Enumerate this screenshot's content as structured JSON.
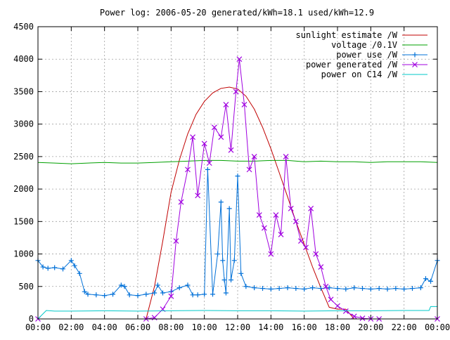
{
  "chart_data": {
    "type": "line",
    "title": "Power log: 2006-05-20 generated/kWh=18.1 used/kWh=12.9",
    "xlabel": "",
    "ylabel": "",
    "grid": true,
    "legend_position": "top-right",
    "xlim": [
      0,
      24
    ],
    "ylim": [
      0,
      4500
    ],
    "x_ticks": [
      {
        "value": 0,
        "label": "00:00"
      },
      {
        "value": 2,
        "label": "02:00"
      },
      {
        "value": 4,
        "label": "04:00"
      },
      {
        "value": 6,
        "label": "06:00"
      },
      {
        "value": 8,
        "label": "08:00"
      },
      {
        "value": 10,
        "label": "10:00"
      },
      {
        "value": 12,
        "label": "12:00"
      },
      {
        "value": 14,
        "label": "14:00"
      },
      {
        "value": 16,
        "label": "16:00"
      },
      {
        "value": 18,
        "label": "18:00"
      },
      {
        "value": 20,
        "label": "20:00"
      },
      {
        "value": 22,
        "label": "22:00"
      },
      {
        "value": 24,
        "label": "00:00"
      }
    ],
    "y_ticks": [
      0,
      500,
      1000,
      1500,
      2000,
      2500,
      3000,
      3500,
      4000,
      4500
    ],
    "series": [
      {
        "name": "sunlight estimate /W",
        "color": "#c00000",
        "marker": "none",
        "x": [
          0,
          6.5,
          7,
          7.5,
          8,
          8.5,
          9,
          9.5,
          10,
          10.5,
          11,
          11.5,
          12,
          12.5,
          13,
          13.5,
          14,
          14.5,
          15,
          15.5,
          16,
          16.5,
          17,
          17.5,
          18,
          18.5,
          19,
          24
        ],
        "y": [
          0,
          0,
          500,
          1200,
          1950,
          2450,
          2850,
          3150,
          3350,
          3480,
          3550,
          3570,
          3540,
          3430,
          3230,
          2950,
          2620,
          2250,
          1880,
          1500,
          1150,
          800,
          480,
          180,
          150,
          150,
          0,
          0
        ]
      },
      {
        "name": "voltage /0.1V",
        "color": "#00a000",
        "marker": "none",
        "x": [
          0,
          1,
          2,
          3,
          4,
          5,
          6,
          7,
          8,
          9,
          10,
          11,
          12,
          13,
          14,
          15,
          16,
          17,
          18,
          19,
          20,
          21,
          22,
          23,
          24
        ],
        "y": [
          2410,
          2400,
          2390,
          2400,
          2410,
          2400,
          2400,
          2410,
          2420,
          2430,
          2440,
          2440,
          2430,
          2430,
          2440,
          2440,
          2420,
          2430,
          2420,
          2420,
          2410,
          2420,
          2420,
          2420,
          2410
        ]
      },
      {
        "name": "power use /W",
        "color": "#0070d8",
        "marker": "plus",
        "x": [
          0,
          0.3,
          0.6,
          1,
          1.5,
          2,
          2.2,
          2.5,
          2.8,
          3,
          3.5,
          4,
          4.5,
          5,
          5.2,
          5.5,
          6,
          6.5,
          7,
          7.2,
          7.5,
          8,
          8.5,
          9,
          9.3,
          9.6,
          10,
          10.2,
          10.5,
          10.8,
          11,
          11.1,
          11.2,
          11.3,
          11.5,
          11.6,
          11.8,
          12,
          12.2,
          12.5,
          13,
          13.5,
          14,
          14.5,
          15,
          15.5,
          16,
          16.5,
          17,
          17.5,
          18,
          18.5,
          19,
          19.5,
          20,
          20.5,
          21,
          21.5,
          22,
          22.5,
          23,
          23.3,
          23.6,
          24
        ],
        "y": [
          900,
          800,
          780,
          790,
          770,
          900,
          820,
          700,
          420,
          380,
          370,
          360,
          380,
          520,
          500,
          370,
          360,
          380,
          400,
          520,
          400,
          420,
          480,
          520,
          370,
          370,
          380,
          2300,
          380,
          1000,
          1800,
          900,
          600,
          400,
          1700,
          600,
          900,
          2200,
          700,
          500,
          480,
          470,
          460,
          470,
          480,
          470,
          460,
          480,
          470,
          480,
          470,
          460,
          480,
          470,
          460,
          470,
          460,
          470,
          460,
          470,
          480,
          620,
          580,
          900
        ]
      },
      {
        "name": "power generated /W",
        "color": "#a000e0",
        "marker": "cross",
        "x": [
          0,
          6.5,
          7,
          7.5,
          8,
          8.3,
          8.6,
          9,
          9.3,
          9.6,
          10,
          10.3,
          10.6,
          11,
          11.3,
          11.6,
          11.9,
          12.1,
          12.4,
          12.7,
          13,
          13.3,
          13.6,
          14,
          14.3,
          14.6,
          14.9,
          15.2,
          15.5,
          15.8,
          16.1,
          16.4,
          16.7,
          17,
          17.3,
          17.6,
          18,
          18.5,
          19,
          19.5,
          20,
          20.5,
          24
        ],
        "y": [
          0,
          0,
          20,
          150,
          350,
          1200,
          1800,
          2300,
          2800,
          1900,
          2700,
          2400,
          2950,
          2800,
          3300,
          2600,
          3500,
          4000,
          3300,
          2300,
          2500,
          1600,
          1400,
          1000,
          1600,
          1300,
          2500,
          1700,
          1500,
          1200,
          1100,
          1700,
          1000,
          800,
          500,
          300,
          200,
          120,
          40,
          10,
          0,
          0,
          0
        ]
      },
      {
        "name": "power on C14 /W",
        "color": "#00c8c8",
        "marker": "none",
        "x": [
          0,
          0.5,
          1,
          2,
          4,
          6,
          8,
          10,
          12,
          14,
          16,
          18,
          20,
          22,
          23.5,
          23.6,
          24
        ],
        "y": [
          0,
          130,
          120,
          120,
          125,
          120,
          125,
          130,
          125,
          125,
          120,
          125,
          125,
          130,
          130,
          190,
          190
        ]
      }
    ]
  }
}
